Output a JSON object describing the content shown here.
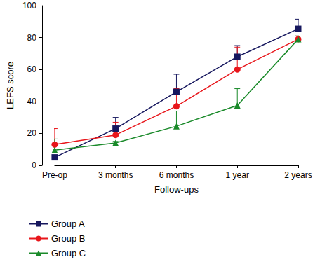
{
  "chart_data": {
    "type": "line",
    "x_label": "Follow-ups",
    "y_label": "LEFS score",
    "categories": [
      "Pre-op",
      "3 months",
      "6 months",
      "1 year",
      "2 years"
    ],
    "series": [
      {
        "name": "Group A",
        "color": "#16175e",
        "marker": "square",
        "values": [
          5,
          23,
          46,
          68,
          85.5
        ],
        "errors": [
          0.5,
          7,
          11,
          7,
          6
        ]
      },
      {
        "name": "Group B",
        "color": "#e8161b",
        "marker": "circle",
        "values": [
          13,
          19,
          37,
          60,
          79
        ],
        "errors": [
          10,
          8,
          11,
          14,
          2
        ]
      },
      {
        "name": "Group C",
        "color": "#1a8a2a",
        "marker": "triangle",
        "values": [
          9.5,
          14,
          24.5,
          37.5,
          79
        ],
        "errors": [
          7,
          1,
          9.5,
          10.5,
          2
        ]
      }
    ],
    "ylim": [
      0,
      100
    ],
    "yticks": [
      0,
      20,
      40,
      60,
      80,
      100
    ],
    "grid": false,
    "legend": "bottom-left"
  }
}
